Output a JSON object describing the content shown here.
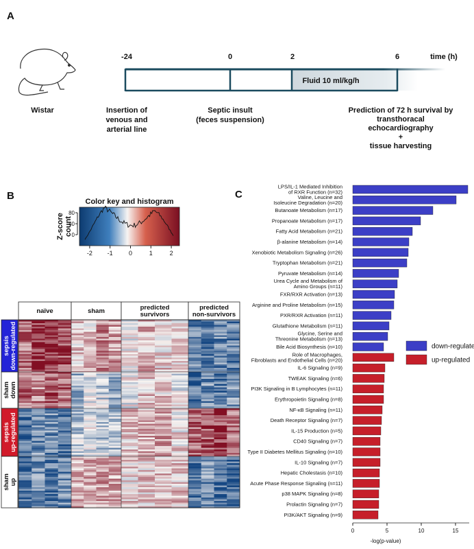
{
  "panel_a": {
    "label": "A",
    "time_label": "time (h)",
    "timepoints": [
      "-24",
      "0",
      "2",
      "6"
    ],
    "fluid": "Fluid 10 ml/kg/h",
    "animal": "Wistar",
    "events": [
      "Insertion of\nvenous and\narterial line",
      "Septic insult\n(feces suspension)",
      "Prediction of 72 h survival by\ntransthoracal\nechocardiography\n+\ntissue harvesting"
    ]
  },
  "panel_b": {
    "label": "B",
    "color_key": {
      "title": "Color key and histogram",
      "xlabel": "Z-score",
      "ylabel": "count",
      "xlim": [
        -2.5,
        2.4
      ],
      "xticks": [
        -2,
        -1,
        0,
        1,
        2
      ],
      "ylim": [
        -40,
        100
      ],
      "yticks": [
        0,
        40,
        80
      ]
    },
    "columns": [
      "naïve",
      "sham",
      "predicted\nsurvivors",
      "predicted\nnon-survivors"
    ],
    "rows": [
      "sepsis\ndown-regulated",
      "sham\ndown",
      "sepsis\nup-regulated",
      "sham\nup"
    ]
  },
  "chart_data": {
    "type": "bar",
    "orientation": "horizontal",
    "panel_label": "C",
    "xlabel": "-log(p-value)",
    "categories": [
      "LPS/IL-1 Mediated Inhibition\nof RXR Function (n=32)",
      "Valine, Leucine and\nIsoleucine Degradation (n=20)",
      "Butanoate Metabolism (n=17)",
      "Propanoate Metabolism (n=17)",
      "Fatty Acid Metabolism (n=21)",
      "β-alanine Metabolism (n=14)",
      "Xenobiotic Metabolism Signaling (n=26)",
      "Tryptophan Metabolism (n=21)",
      "Pyruvate Metabolism (n=14)",
      "Urea Cycle and Metabolism of\nAmino Groups (n=11)",
      "FXR/RXR Activation (n=13)",
      "Arginine and Proline Metabolism (n=15)",
      "PXR/RXR Activation (n=11)",
      "Glutathione Metabolism (n=11)",
      "Glycine, Serine and\nThreonine Metabolism (n=13)",
      "Bile Acid Biosynthesis (n=10)",
      "Role of Macrophages,\nFibroblasts and Endothelial Cells (n=20)",
      "IL-6 Signaling (n=9)",
      "TWEAK Signaling (n=6)",
      "PI3K Signaling in B Lymphocytes (n=11)",
      "Erythropoietin Signaling (n=8)",
      "NF-κB Signaling (n=11)",
      "Death Receptor Signaling (n=7)",
      "IL-15 Production (n=5)",
      "CD40 Signaling (n=7)",
      "Type II Diabetes Mellitus Signaling (n=10)",
      "IL-10 Signaling (n=7)",
      "Hepatic Cholestasis (n=10)",
      "Acute Phase Response Signaling (n=11)",
      "p38 MAPK Signaling (n=8)",
      "Prolactin Signaling (n=7)",
      "PI3K/AKT Signaling (n=9)"
    ],
    "series": [
      {
        "name": "down-regulated",
        "color": "#3c3fc6",
        "values": [
          16.8,
          15.1,
          11.7,
          9.9,
          8.7,
          8.2,
          8.1,
          7.9,
          6.7,
          6.5,
          6.1,
          6.0,
          5.6,
          5.3,
          5.1,
          4.5,
          null,
          null,
          null,
          null,
          null,
          null,
          null,
          null,
          null,
          null,
          null,
          null,
          null,
          null,
          null,
          null
        ]
      },
      {
        "name": "up-regulated",
        "color": "#c61f2a",
        "values": [
          null,
          null,
          null,
          null,
          null,
          null,
          null,
          null,
          null,
          null,
          null,
          null,
          null,
          null,
          null,
          null,
          6.0,
          4.7,
          4.6,
          4.5,
          4.5,
          4.3,
          4.2,
          4.1,
          4.0,
          4.0,
          4.0,
          3.9,
          3.9,
          3.8,
          3.8,
          3.7
        ]
      }
    ],
    "xlim": [
      0,
      17
    ],
    "xticks": [
      0,
      5,
      10,
      15
    ],
    "legend": "right"
  }
}
